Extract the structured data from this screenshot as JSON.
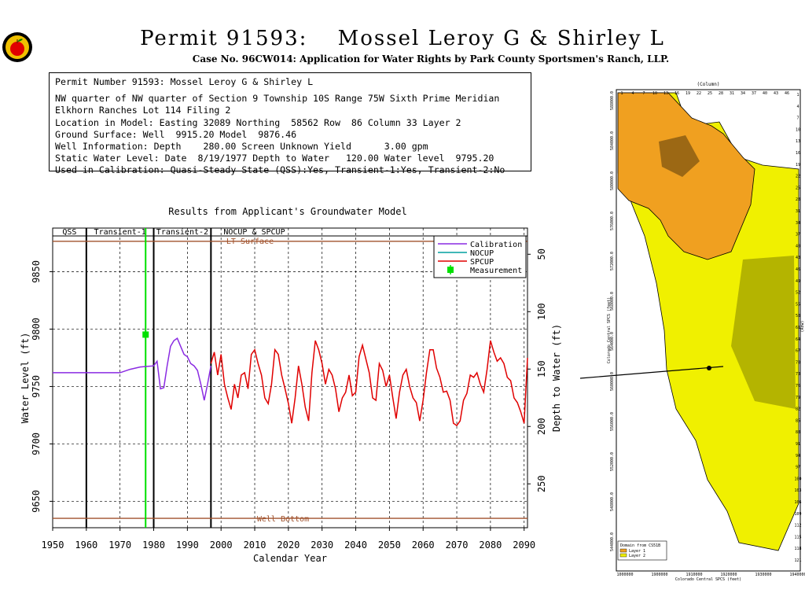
{
  "header": {
    "title_left": "Permit 91593:",
    "title_right": "Mossel Leroy G & Shirley L",
    "case_line": "Case No. 96CW014: Application for Water Rights by Park County Sportsmen's Ranch, LLP."
  },
  "info_box": {
    "lines": [
      "Permit Number 91593: Mossel Leroy G & Shirley L",
      "NW quarter of NW quarter of Section 9 Township 10S Range 75W Sixth Prime Meridian",
      "Elkhorn Ranches Lot 114 Filing 2",
      "Location in Model: Easting 32089 Northing  58562 Row  86 Column 33 Layer 2",
      "Ground Surface: Well  9915.20 Model  9876.46",
      "Well Information: Depth    280.00 Screen Unknown Yield      3.00 gpm",
      "Static Water Level: Date  8/19/1977 Depth to Water   120.00 Water level  9795.20",
      "Used in Calibration: Quasi-Steady State (QSS):Yes, Transient-1:Yes, Transient-2:No"
    ]
  },
  "colors": {
    "calibration": "#8a2be2",
    "nocup": "#00a0a0",
    "spcup": "#e00000",
    "measurement": "#00e000",
    "surface": "#a0522d",
    "map_layer1": "#f0a020",
    "map_layer2": "#f0f000"
  },
  "chart_data": {
    "type": "line",
    "title": "Results from Applicant's Groundwater Model",
    "xlabel": "Calendar Year",
    "ylabel": "Water Level (ft)",
    "y2label": "Depth to Water (ft)",
    "xlim": [
      1950,
      2091
    ],
    "ylim": [
      9627,
      9888
    ],
    "x_ticks": [
      1950,
      1960,
      1970,
      1980,
      1990,
      2000,
      2010,
      2020,
      2030,
      2040,
      2050,
      2060,
      2070,
      2080,
      2090
    ],
    "y_ticks": [
      9650,
      9700,
      9750,
      9800,
      9850
    ],
    "y2_ticks": [
      50,
      100,
      150,
      200,
      250
    ],
    "y2_reference": 9915.2,
    "grid": true,
    "periods": [
      {
        "label": "QSS",
        "start": 1950,
        "end": 1960
      },
      {
        "label": "Transient-1",
        "start": 1960,
        "end": 1980
      },
      {
        "label": "Transient-2",
        "start": 1980,
        "end": 1997
      },
      {
        "label": "NOCUP & SPCUP",
        "start": 1997,
        "end": 2091
      }
    ],
    "reference_lines": [
      {
        "label": "LT Surface",
        "y": 9876.46
      },
      {
        "label": "Well Bottom",
        "y": 9635.2
      }
    ],
    "measurement": {
      "x": 1977.6,
      "y": 9795.2,
      "vline_x": 1977.6
    },
    "legend": [
      "Calibration",
      "NOCUP",
      "SPCUP",
      "Measurement"
    ],
    "legend_position": "top-right",
    "series": [
      {
        "name": "Calibration",
        "x": [
          1950,
          1970,
          1973,
          1976,
          1980,
          1981,
          1982,
          1983,
          1984,
          1985,
          1986,
          1987,
          1988,
          1989,
          1990,
          1991,
          1992,
          1993,
          1994,
          1995,
          1996,
          1997
        ],
        "y": [
          9762,
          9762,
          9765,
          9767,
          9768,
          9772,
          9748,
          9749,
          9768,
          9785,
          9790,
          9792,
          9785,
          9778,
          9776,
          9770,
          9768,
          9764,
          9752,
          9738,
          9752,
          9768
        ]
      },
      {
        "name": "SPCUP",
        "x": [
          1997,
          1998,
          1999,
          2000,
          2001,
          2002,
          2003,
          2004,
          2005,
          2006,
          2007,
          2008,
          2009,
          2010,
          2011,
          2012,
          2013,
          2014,
          2015,
          2016,
          2017,
          2018,
          2019,
          2020,
          2021,
          2022,
          2023,
          2024,
          2025,
          2026,
          2027,
          2028,
          2029,
          2030,
          2031,
          2032,
          2033,
          2034,
          2035,
          2036,
          2037,
          2038,
          2039,
          2040,
          2041,
          2042,
          2043,
          2044,
          2045,
          2046,
          2047,
          2048,
          2049,
          2050,
          2051,
          2052,
          2053,
          2054,
          2055,
          2056,
          2057,
          2058,
          2059,
          2060,
          2061,
          2062,
          2063,
          2064,
          2065,
          2066,
          2067,
          2068,
          2069,
          2070,
          2071,
          2072,
          2073,
          2074,
          2075,
          2076,
          2077,
          2078,
          2079,
          2080,
          2081,
          2082,
          2083,
          2084,
          2085,
          2086,
          2087,
          2088,
          2089,
          2090,
          2091
        ],
        "y": [
          9770,
          9780,
          9760,
          9778,
          9752,
          9740,
          9730,
          9752,
          9740,
          9760,
          9762,
          9748,
          9778,
          9782,
          9770,
          9760,
          9740,
          9735,
          9752,
          9782,
          9778,
          9760,
          9748,
          9735,
          9718,
          9740,
          9768,
          9752,
          9732,
          9720,
          9762,
          9790,
          9782,
          9770,
          9752,
          9765,
          9760,
          9748,
          9728,
          9740,
          9745,
          9760,
          9742,
          9745,
          9776,
          9786,
          9774,
          9762,
          9740,
          9738,
          9770,
          9764,
          9750,
          9760,
          9740,
          9722,
          9745,
          9760,
          9765,
          9750,
          9740,
          9736,
          9720,
          9738,
          9762,
          9782,
          9782,
          9766,
          9758,
          9745,
          9746,
          9738,
          9718,
          9716,
          9720,
          9738,
          9744,
          9760,
          9758,
          9762,
          9752,
          9745,
          9765,
          9790,
          9780,
          9772,
          9775,
          9770,
          9758,
          9755,
          9740,
          9736,
          9728,
          9718,
          9775
        ]
      }
    ]
  },
  "map": {
    "title": "(Column)",
    "easting_label": "Colorado Central SPCS (feet)",
    "northing_label": "Colorado Central SPCS (feet)",
    "row_label": "(Row)",
    "legend_title": "Domain from CS51B",
    "legend_items": [
      "Layer 1",
      "Layer 2"
    ],
    "easting_ticks": [
      "1000000",
      "1900000",
      "1910000",
      "1920000",
      "1930000",
      "1940000"
    ],
    "northing_ticks": [
      "588000.0",
      "584000.0",
      "580000.0",
      "576000.0",
      "572000.0",
      "568000.0",
      "564000.0",
      "560000.0",
      "556000.0",
      "552000.0",
      "548000.0",
      "544000.0"
    ],
    "column_ticks": [
      "1",
      "4",
      "7",
      "10",
      "13",
      "16",
      "19",
      "22",
      "25",
      "28",
      "31",
      "34",
      "37",
      "40",
      "43",
      "46"
    ],
    "row_ticks": [
      "1",
      "4",
      "7",
      "10",
      "13",
      "16",
      "19",
      "22",
      "25",
      "28",
      "31",
      "34",
      "37",
      "40",
      "43",
      "46",
      "49",
      "52",
      "55",
      "58",
      "61",
      "64",
      "67",
      "70",
      "73",
      "76",
      "79",
      "82",
      "85",
      "88",
      "91",
      "94",
      "97",
      "100",
      "103",
      "106",
      "109",
      "112",
      "115",
      "118",
      "121"
    ]
  }
}
